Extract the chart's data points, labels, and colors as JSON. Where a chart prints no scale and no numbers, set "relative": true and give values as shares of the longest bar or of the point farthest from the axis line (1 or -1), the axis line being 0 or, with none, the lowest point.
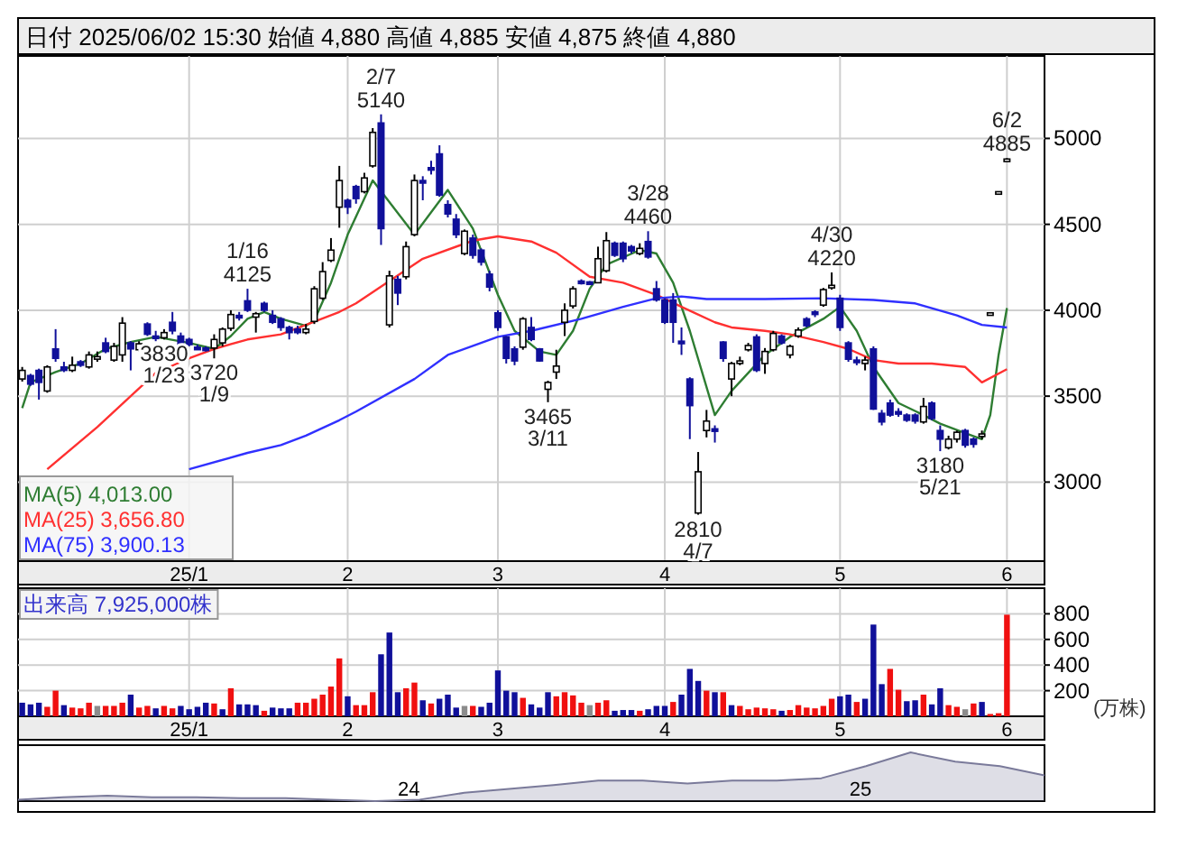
{
  "chart_data": [
    {
      "type": "candlestick",
      "title": "日付 2025/06/02 15:30 始値 4,880 高値 4,885 安値 4,875 終値 4,880",
      "colors": [
        "#ffffff",
        "#10109a",
        "#10109a",
        "#ffffff",
        "#10109a",
        "#10109a",
        "#ffffff",
        "#10109a",
        "#ffffff",
        "#ffffff",
        "#10109a",
        "#ffffff",
        "#ffffff",
        "#10109a",
        "#ffffff",
        "#10109a",
        "#10109a",
        "#ffffff",
        "#10109a",
        "#10109a",
        "#10109a",
        "#10109a",
        "#10109a",
        "#ffffff",
        "#ffffff",
        "#ffffff",
        "#10109a",
        "#10109a",
        "#ffffff",
        "#10109a",
        "#10109a",
        "#10109a",
        "#10109a",
        "#10109a",
        "#ffffff",
        "#ffffff",
        "#ffffff",
        "#ffffff",
        "#ffffff",
        "#10109a",
        "#10109a",
        "#ffffff",
        "#ffffff",
        "#10109a",
        "#ffffff",
        "#10109a",
        "#ffffff",
        "#ffffff",
        "#10109a",
        "#10109a",
        "#10109a",
        "#10109a",
        "#10109a",
        "#ffffff",
        "#10109a",
        "#10109a",
        "#10109a",
        "#10109a",
        "#10109a",
        "#10109a",
        "#ffffff",
        "#10109a",
        "#10109a",
        "#ffffff",
        "#ffffff",
        "#ffffff",
        "#ffffff",
        "#10109a",
        "#10109a",
        "#ffffff",
        "#ffffff",
        "#10109a",
        "#10109a",
        "#10109a",
        "#ffffff",
        "#10109a",
        "#10109a",
        "#10109a",
        "#10109a",
        "#10109a",
        "#10109a",
        "#ffffff",
        "#ffffff",
        "#10109a",
        "#10109a",
        "#ffffff",
        "#ffffff",
        "#ffffff",
        "#10109a",
        "#ffffff",
        "#ffffff",
        "#10109a",
        "#ffffff",
        "#ffffff",
        "#10109a",
        "#10109a",
        "#ffffff",
        "#ffffff",
        "#10109a",
        "#10109a",
        "#10109a",
        "#ffffff",
        "#10109a",
        "#10109a",
        "#10109a",
        "#10109a",
        "#10109a",
        "#10109a",
        "#ffffff",
        "#10109a",
        "#10109a",
        "#ffffff",
        "#ffffff",
        "#10109a",
        "#10109a",
        "#ffffff",
        "#ffffff",
        "#ffffff",
        "#ffffff"
      ],
      "categories": [
        null,
        null,
        null,
        null,
        null,
        null,
        null,
        null,
        null,
        null,
        null,
        null,
        null,
        null,
        null,
        null,
        null,
        null,
        null,
        null,
        "25/1",
        null,
        null,
        null,
        null,
        null,
        null,
        null,
        null,
        null,
        null,
        null,
        null,
        null,
        null,
        null,
        null,
        null,
        null,
        "2",
        null,
        null,
        null,
        null,
        null,
        null,
        null,
        null,
        null,
        null,
        null,
        null,
        null,
        null,
        null,
        null,
        null,
        "3",
        null,
        null,
        null,
        null,
        null,
        null,
        null,
        null,
        null,
        null,
        null,
        null,
        null,
        null,
        null,
        null,
        null,
        null,
        null,
        "4",
        null,
        null,
        null,
        null,
        null,
        null,
        null,
        null,
        null,
        null,
        null,
        null,
        null,
        null,
        null,
        null,
        null,
        null,
        null,
        null,
        "5",
        null,
        null,
        null,
        null,
        null,
        null,
        null,
        null,
        null,
        null,
        null,
        null,
        null,
        null,
        null,
        null,
        null,
        null,
        null,
        "6"
      ],
      "ohlc": [
        [
          3600,
          3670,
          3585,
          3650
        ],
        [
          3620,
          3630,
          3560,
          3570
        ],
        [
          3650,
          3660,
          3480,
          3580
        ],
        [
          3530,
          3680,
          3520,
          3670
        ],
        [
          3775,
          3890,
          3700,
          3720
        ],
        [
          3670,
          3700,
          3640,
          3650
        ],
        [
          3650,
          3730,
          3640,
          3680
        ],
        [
          3700,
          3710,
          3670,
          3680
        ],
        [
          3670,
          3760,
          3660,
          3740
        ],
        [
          3720,
          3760,
          3700,
          3730
        ],
        [
          3810,
          3840,
          3750,
          3760
        ],
        [
          3710,
          3810,
          3700,
          3790
        ],
        [
          3740,
          3960,
          3700,
          3925
        ],
        [
          3810,
          3820,
          3650,
          3775
        ],
        [
          3770,
          3820,
          3760,
          3805
        ],
        [
          3920,
          3930,
          3850,
          3860
        ],
        [
          3850,
          3880,
          3820,
          3840
        ],
        [
          3840,
          3890,
          3830,
          3870
        ],
        [
          3930,
          3990,
          3860,
          3880
        ],
        [
          3850,
          3870,
          3780,
          3800
        ],
        [
          3830,
          3840,
          3790,
          3800
        ],
        [
          3785,
          3800,
          3770,
          3780
        ],
        [
          3780,
          3790,
          3760,
          3770
        ],
        [
          3780,
          3860,
          3720,
          3830
        ],
        [
          3810,
          3900,
          3790,
          3890
        ],
        [
          3895,
          4000,
          3880,
          3975
        ],
        [
          3970,
          3990,
          3940,
          3960
        ],
        [
          4055,
          4125,
          3990,
          4000
        ],
        [
          3960,
          3990,
          3870,
          3980
        ],
        [
          4040,
          4050,
          3990,
          4000
        ],
        [
          3970,
          4000,
          3920,
          3930
        ],
        [
          3950,
          3960,
          3880,
          3900
        ],
        [
          3900,
          3910,
          3830,
          3870
        ],
        [
          3890,
          3910,
          3860,
          3870
        ],
        [
          3870,
          3920,
          3860,
          3890
        ],
        [
          3935,
          4140,
          3920,
          4125
        ],
        [
          4070,
          4280,
          4060,
          4225
        ],
        [
          4290,
          4420,
          4280,
          4350
        ],
        [
          4600,
          4840,
          4480,
          4755
        ],
        [
          4640,
          4650,
          4560,
          4600
        ],
        [
          4720,
          4730,
          4620,
          4650
        ],
        [
          4690,
          4800,
          4680,
          4770
        ],
        [
          4840,
          5060,
          4830,
          5035
        ],
        [
          5090,
          5140,
          4380,
          4475
        ],
        [
          3915,
          4230,
          3900,
          4200
        ],
        [
          4180,
          4200,
          4030,
          4100
        ],
        [
          4195,
          4400,
          4180,
          4370
        ],
        [
          4440,
          4790,
          4430,
          4755
        ],
        [
          4755,
          4780,
          4640,
          4740
        ],
        [
          4830,
          4870,
          4790,
          4825
        ],
        [
          4910,
          4960,
          4660,
          4670
        ],
        [
          4615,
          4640,
          4540,
          4560
        ],
        [
          4530,
          4560,
          4420,
          4440
        ],
        [
          4330,
          4470,
          4320,
          4460
        ],
        [
          4420,
          4440,
          4300,
          4320
        ],
        [
          4350,
          4360,
          4260,
          4280
        ],
        [
          4210,
          4230,
          4110,
          4135
        ],
        [
          3985,
          4000,
          3880,
          3900
        ],
        [
          3845,
          3850,
          3690,
          3720
        ],
        [
          3775,
          3790,
          3680,
          3705
        ],
        [
          3785,
          3960,
          3770,
          3950
        ],
        [
          3900,
          3960,
          3820,
          3830
        ],
        [
          3775,
          3780,
          3700,
          3705
        ],
        [
          3540,
          3590,
          3465,
          3580
        ],
        [
          3640,
          3770,
          3600,
          3675
        ],
        [
          3930,
          4040,
          3850,
          4000
        ],
        [
          4025,
          4140,
          4010,
          4125
        ],
        [
          4170,
          4180,
          4150,
          4160
        ],
        [
          4165,
          4170,
          4150,
          4160
        ],
        [
          4160,
          4370,
          4160,
          4300
        ],
        [
          4230,
          4455,
          4220,
          4405
        ],
        [
          4390,
          4400,
          4310,
          4320
        ],
        [
          4390,
          4400,
          4280,
          4300
        ],
        [
          4370,
          4380,
          4330,
          4345
        ],
        [
          4330,
          4390,
          4320,
          4360
        ],
        [
          4400,
          4460,
          4300,
          4310
        ],
        [
          4125,
          4170,
          4050,
          4060
        ],
        [
          4060,
          4070,
          3920,
          3930
        ],
        [
          4060,
          4100,
          3810,
          3930
        ],
        [
          3820,
          3900,
          3740,
          3810
        ],
        [
          3600,
          3610,
          3250,
          3445
        ],
        [
          2820,
          3175,
          2810,
          3060
        ],
        [
          3300,
          3420,
          3260,
          3355
        ],
        [
          3310,
          3330,
          3230,
          3300
        ],
        [
          3815,
          3820,
          3700,
          3720
        ],
        [
          3600,
          3700,
          3500,
          3690
        ],
        [
          3700,
          3730,
          3680,
          3705
        ],
        [
          3770,
          3810,
          3760,
          3795
        ],
        [
          3845,
          3860,
          3640,
          3650
        ],
        [
          3690,
          3780,
          3630,
          3760
        ],
        [
          3770,
          3880,
          3760,
          3865
        ],
        [
          3850,
          3860,
          3800,
          3810
        ],
        [
          3740,
          3800,
          3720,
          3790
        ],
        [
          3850,
          3900,
          3840,
          3885
        ],
        [
          3950,
          3960,
          3900,
          3910
        ],
        [
          3990,
          4000,
          3960,
          3985
        ],
        [
          4030,
          4130,
          4020,
          4120
        ],
        [
          4140,
          4220,
          4120,
          4145
        ],
        [
          4070,
          4090,
          3880,
          3900
        ],
        [
          3810,
          3820,
          3700,
          3715
        ],
        [
          3710,
          3730,
          3680,
          3705
        ],
        [
          3690,
          3730,
          3650,
          3710
        ],
        [
          3775,
          3790,
          3420,
          3425
        ],
        [
          3400,
          3420,
          3330,
          3350
        ],
        [
          3460,
          3480,
          3380,
          3390
        ],
        [
          3410,
          3430,
          3380,
          3405
        ],
        [
          3390,
          3400,
          3350,
          3360
        ],
        [
          3390,
          3400,
          3340,
          3355
        ],
        [
          3350,
          3490,
          3340,
          3440
        ],
        [
          3460,
          3470,
          3360,
          3370
        ],
        [
          3300,
          3330,
          3180,
          3250
        ],
        [
          3200,
          3270,
          3190,
          3250
        ],
        [
          3250,
          3300,
          3230,
          3290
        ],
        [
          3300,
          3310,
          3200,
          3215
        ],
        [
          3250,
          3260,
          3200,
          3220
        ],
        [
          3270,
          3300,
          3250,
          3280
        ],
        [
          3985,
          3985,
          3985,
          3985
        ],
        [
          4690,
          4690,
          4690,
          4690
        ],
        [
          4880,
          4885,
          4875,
          4880
        ]
      ],
      "series": [
        {
          "type": "line",
          "name": "MA(5)   4,013.00",
          "color": "#2e7d32",
          "values": [
            3430,
            3580,
            null,
            null,
            3640,
            null,
            null,
            3690,
            null,
            null,
            3775,
            null,
            null,
            3815,
            null,
            null,
            3845,
            null,
            null,
            null,
            3810,
            null,
            null,
            3775,
            null,
            3850,
            null,
            3950,
            null,
            3990,
            null,
            3950,
            null,
            null,
            3910,
            3940,
            null,
            4160,
            null,
            4440,
            null,
            null,
            4755,
            null,
            null,
            null,
            null,
            4440,
            null,
            null,
            null,
            4700,
            null,
            null,
            4475,
            null,
            null,
            4090,
            null,
            3880,
            null,
            null,
            3760,
            null,
            3740,
            null,
            3880,
            null,
            4125,
            null,
            4265,
            null,
            null,
            null,
            4350,
            null,
            4330,
            null,
            4160,
            null,
            3880,
            null,
            null,
            3390,
            null,
            3530,
            null,
            null,
            null,
            3740,
            null,
            null,
            3845,
            null,
            null,
            null,
            3950,
            null,
            4020,
            null,
            3880,
            null,
            3670,
            null,
            null,
            3460,
            null,
            null,
            3390,
            null,
            3340,
            null,
            null,
            3285,
            null,
            3250,
            3390,
            3740,
            4013
          ]
        },
        {
          "type": "line",
          "name": "MA(25)  3,656.80",
          "color": "#ff3030",
          "values": [
            null,
            null,
            null,
            3075,
            null,
            null,
            null,
            null,
            null,
            3320,
            null,
            null,
            null,
            null,
            null,
            null,
            3635,
            null,
            null,
            null,
            3720,
            null,
            null,
            3775,
            null,
            null,
            null,
            3830,
            null,
            null,
            null,
            3860,
            null,
            null,
            3915,
            null,
            null,
            null,
            3990,
            null,
            4040,
            null,
            null,
            null,
            4170,
            null,
            null,
            null,
            4300,
            null,
            null,
            null,
            null,
            null,
            4405,
            null,
            null,
            4430,
            null,
            null,
            null,
            4400,
            null,
            null,
            4335,
            null,
            null,
            null,
            4195,
            null,
            null,
            null,
            4160,
            null,
            null,
            null,
            4090,
            null,
            null,
            4020,
            null,
            null,
            null,
            3930,
            null,
            3900,
            null,
            null,
            null,
            3880,
            null,
            null,
            3860,
            null,
            null,
            null,
            3815,
            null,
            null,
            3775,
            null,
            null,
            3710,
            null,
            null,
            3690,
            null,
            null,
            null,
            3690,
            null,
            null,
            null,
            3670,
            null,
            3580,
            null,
            null,
            3657
          ]
        },
        {
          "type": "line",
          "name": "MA(75)  3,900.13",
          "color": "#3030ff",
          "values": [
            null,
            null,
            null,
            null,
            null,
            null,
            null,
            null,
            null,
            null,
            null,
            null,
            null,
            null,
            null,
            null,
            null,
            null,
            null,
            null,
            3075,
            null,
            null,
            null,
            null,
            null,
            null,
            3170,
            null,
            null,
            null,
            3215,
            null,
            null,
            3270,
            null,
            null,
            null,
            3360,
            null,
            3410,
            null,
            null,
            null,
            null,
            null,
            null,
            3600,
            null,
            null,
            null,
            3740,
            null,
            null,
            null,
            null,
            null,
            3845,
            null,
            null,
            null,
            3880,
            null,
            null,
            null,
            null,
            null,
            3950,
            null,
            null,
            null,
            null,
            4020,
            null,
            null,
            null,
            4070,
            null,
            null,
            4080,
            null,
            null,
            4065,
            null,
            null,
            null,
            null,
            null,
            null,
            4065,
            null,
            null,
            null,
            null,
            null,
            null,
            4070,
            null,
            null,
            null,
            null,
            null,
            4060,
            null,
            null,
            null,
            null,
            4040,
            null,
            null,
            null,
            null,
            3970,
            null,
            null,
            3915,
            null,
            null,
            3900
          ]
        }
      ],
      "ylim": [
        2540,
        5480
      ],
      "yticks": [
        3000,
        3500,
        4000,
        4500,
        5000
      ],
      "grid": true,
      "legend": "bottom left",
      "annotations": [
        {
          "text": "1/16\n4125",
          "y": 4125
        },
        {
          "text": "2/7\n5140",
          "y": 5140
        },
        {
          "text": "3/28\n4460",
          "y": 4460
        },
        {
          "text": "4/30\n4220",
          "y": 4220
        },
        {
          "text": "6/2\n4885",
          "y": 4885
        },
        {
          "text": "3720\n1/9",
          "y": 3720
        },
        {
          "text": "3830\n1/23",
          "y": 3830
        },
        {
          "text": "3465\n3/11",
          "y": 3465
        },
        {
          "text": "2810\n4/7",
          "y": 2810
        },
        {
          "text": "3180\n5/21",
          "y": 3180
        }
      ]
    },
    {
      "type": "bar",
      "title": "出来高  7,925,000株",
      "ylabel": "(万株)",
      "categories": [
        null,
        null,
        null,
        null,
        null,
        null,
        null,
        null,
        null,
        null,
        null,
        null,
        null,
        null,
        null,
        null,
        null,
        null,
        null,
        null,
        "25/1",
        null,
        null,
        null,
        null,
        null,
        null,
        null,
        null,
        null,
        null,
        null,
        null,
        null,
        null,
        null,
        null,
        null,
        null,
        "2",
        null,
        null,
        null,
        null,
        null,
        null,
        null,
        null,
        null,
        null,
        null,
        null,
        null,
        null,
        null,
        null,
        null,
        "3",
        null,
        null,
        null,
        null,
        null,
        null,
        null,
        null,
        null,
        null,
        null,
        null,
        null,
        null,
        null,
        null,
        null,
        null,
        null,
        "4",
        null,
        null,
        null,
        null,
        null,
        null,
        null,
        null,
        null,
        null,
        null,
        null,
        null,
        null,
        null,
        null,
        null,
        null,
        null,
        null,
        "5",
        null,
        null,
        null,
        null,
        null,
        null,
        null,
        null,
        null,
        null,
        null,
        null,
        null,
        null,
        null,
        null,
        null,
        null,
        null,
        "6"
      ],
      "values": [
        106,
        93,
        106,
        74,
        200,
        87,
        68,
        62,
        106,
        81,
        81,
        81,
        106,
        169,
        68,
        81,
        62,
        81,
        62,
        81,
        55,
        74,
        106,
        100,
        55,
        219,
        93,
        93,
        87,
        43,
        68,
        62,
        62,
        106,
        106,
        137,
        169,
        232,
        452,
        156,
        87,
        87,
        188,
        484,
        654,
        188,
        219,
        263,
        125,
        100,
        137,
        169,
        68,
        81,
        81,
        74,
        106,
        358,
        200,
        188,
        144,
        93,
        68,
        188,
        156,
        188,
        163,
        106,
        87,
        106,
        125,
        43,
        49,
        49,
        43,
        55,
        81,
        81,
        112,
        169,
        370,
        276,
        200,
        188,
        188,
        87,
        81,
        55,
        68,
        62,
        55,
        43,
        49,
        87,
        68,
        62,
        81,
        137,
        156,
        169,
        112,
        137,
        716,
        251,
        370,
        207,
        118,
        125,
        169,
        93,
        219,
        87,
        74,
        55,
        100,
        112,
        18,
        24,
        793
      ],
      "colors": [
        "#10109a",
        "#10109a",
        "#10109a",
        "#f01010",
        "#f01010",
        "#10109a",
        "#f01010",
        "#f01010",
        "#f01010",
        "#8c8c8c",
        "#f01010",
        "#f01010",
        "#f01010",
        "#10109a",
        "#f01010",
        "#f01010",
        "#10109a",
        "#f01010",
        "#f01010",
        "#10109a",
        "#10109a",
        "#10109a",
        "#10109a",
        "#f01010",
        "#10109a",
        "#f01010",
        "#10109a",
        "#10109a",
        "#10109a",
        "#f01010",
        "#10109a",
        "#10109a",
        "#10109a",
        "#f01010",
        "#f01010",
        "#f01010",
        "#f01010",
        "#f01010",
        "#f01010",
        "#10109a",
        "#f01010",
        "#f01010",
        "#f01010",
        "#10109a",
        "#10109a",
        "#10109a",
        "#f01010",
        "#f01010",
        "#10109a",
        "#f01010",
        "#10109a",
        "#10109a",
        "#10109a",
        "#8c8c8c",
        "#f01010",
        "#10109a",
        "#10109a",
        "#10109a",
        "#10109a",
        "#10109a",
        "#f01010",
        "#10109a",
        "#10109a",
        "#10109a",
        "#f01010",
        "#f01010",
        "#f01010",
        "#f01010",
        "#8c8c8c",
        "#f01010",
        "#f01010",
        "#10109a",
        "#10109a",
        "#10109a",
        "#f01010",
        "#10109a",
        "#10109a",
        "#10109a",
        "#f01010",
        "#10109a",
        "#10109a",
        "#10109a",
        "#f01010",
        "#10109a",
        "#f01010",
        "#10109a",
        "#f01010",
        "#f01010",
        "#f01010",
        "#f01010",
        "#f01010",
        "#10109a",
        "#f01010",
        "#f01010",
        "#f01010",
        "#f01010",
        "#f01010",
        "#f01010",
        "#10109a",
        "#10109a",
        "#f01010",
        "#10109a",
        "#10109a",
        "#10109a",
        "#f01010",
        "#f01010",
        "#10109a",
        "#10109a",
        "#f01010",
        "#10109a",
        "#10109a",
        "#f01010",
        "#f01010",
        "#8c8c8c",
        "#f01010",
        "#10109a",
        "#f01010",
        "#f01010",
        "#f01010"
      ],
      "ylim": [
        0,
        1000
      ],
      "yticks": [
        200,
        400,
        600,
        800
      ],
      "grid": true
    },
    {
      "type": "area",
      "relative": true,
      "color": "#7a7a9a",
      "tick_labels": false,
      "categories": [
        null,
        null,
        null,
        null,
        null,
        null,
        null,
        null,
        null,
        null,
        null,
        null,
        null,
        null,
        null,
        null,
        null,
        null,
        null,
        null,
        null,
        null,
        null,
        null
      ],
      "values": [
        0.03,
        0.08,
        0.11,
        0.08,
        0.08,
        0.06,
        0.06,
        0.03,
        0,
        0.03,
        0.17,
        0.25,
        0.33,
        0.42,
        0.42,
        0.36,
        0.42,
        0.42,
        0.47,
        0.72,
        1,
        0.81,
        0.72,
        0.53
      ],
      "annotations": [
        "24",
        "25"
      ]
    }
  ]
}
